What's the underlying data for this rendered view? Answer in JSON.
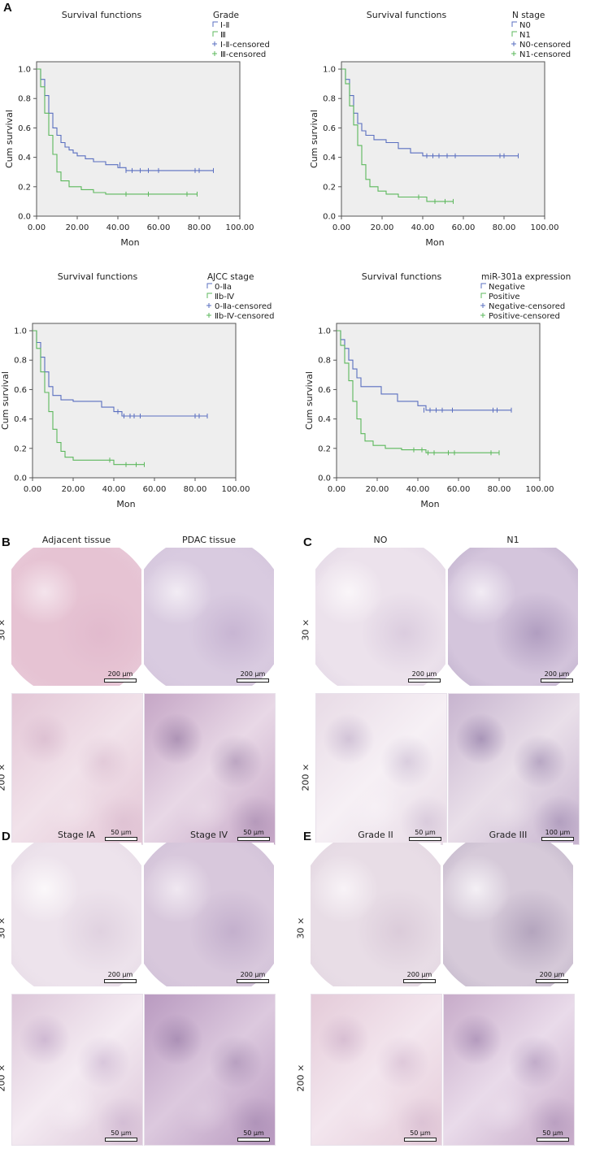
{
  "panels": {
    "A": "A",
    "B": "B",
    "C": "C",
    "D": "D",
    "E": "E"
  },
  "chart_data": [
    {
      "type": "line",
      "title": "Survival functions",
      "xlabel": "Mon",
      "ylabel": "Cum survival",
      "xlim": [
        0,
        100
      ],
      "ylim": [
        0,
        1.05
      ],
      "xticks": [
        "0.00",
        "20.00",
        "40.00",
        "60.00",
        "80.00",
        "100.00"
      ],
      "yticks": [
        "0.0",
        "0.2",
        "0.4",
        "0.6",
        "0.8",
        "1.0"
      ],
      "legend_title": "Grade",
      "legend_placement": "top-right",
      "legend": [
        "Ⅰ-Ⅱ",
        "Ⅲ",
        "Ⅰ-Ⅱ-censored",
        "Ⅲ-censored"
      ],
      "series": [
        {
          "name": "Ⅰ-Ⅱ",
          "color": "#5a6fc0",
          "x": [
            0,
            2,
            2,
            4,
            4,
            6,
            6,
            8,
            8,
            10,
            10,
            12,
            12,
            14,
            14,
            16,
            16,
            18,
            18,
            20,
            20,
            24,
            24,
            28,
            28,
            34,
            34,
            40,
            40,
            44,
            44,
            87
          ],
          "y": [
            1,
            1,
            0.93,
            0.93,
            0.82,
            0.82,
            0.7,
            0.7,
            0.6,
            0.6,
            0.55,
            0.55,
            0.5,
            0.5,
            0.47,
            0.47,
            0.45,
            0.45,
            0.43,
            0.43,
            0.41,
            0.41,
            0.39,
            0.39,
            0.37,
            0.37,
            0.35,
            0.35,
            0.33,
            0.33,
            0.31,
            0.31
          ],
          "censored": [
            [
              41,
              0.35
            ],
            [
              44,
              0.31
            ],
            [
              47,
              0.31
            ],
            [
              51,
              0.31
            ],
            [
              55,
              0.31
            ],
            [
              60,
              0.31
            ],
            [
              78,
              0.31
            ],
            [
              80,
              0.31
            ],
            [
              87,
              0.31
            ]
          ]
        },
        {
          "name": "Ⅲ",
          "color": "#5cb85c",
          "x": [
            0,
            2,
            2,
            4,
            4,
            6,
            6,
            8,
            8,
            10,
            10,
            12,
            12,
            16,
            16,
            22,
            22,
            28,
            28,
            34,
            34,
            79
          ],
          "y": [
            1,
            1,
            0.88,
            0.88,
            0.7,
            0.7,
            0.55,
            0.55,
            0.42,
            0.42,
            0.3,
            0.3,
            0.24,
            0.24,
            0.2,
            0.2,
            0.18,
            0.18,
            0.16,
            0.16,
            0.15,
            0.15
          ],
          "censored": [
            [
              44,
              0.15
            ],
            [
              55,
              0.15
            ],
            [
              74,
              0.15
            ],
            [
              79,
              0.15
            ]
          ]
        }
      ]
    },
    {
      "type": "line",
      "title": "Survival functions",
      "xlabel": "Mon",
      "ylabel": "Cum survival",
      "xlim": [
        0,
        100
      ],
      "ylim": [
        0,
        1.05
      ],
      "xticks": [
        "0.00",
        "20.00",
        "40.00",
        "60.00",
        "80.00",
        "100.00"
      ],
      "yticks": [
        "0.0",
        "0.2",
        "0.4",
        "0.6",
        "0.8",
        "1.0"
      ],
      "legend_title": "N stage",
      "legend_placement": "top-right",
      "legend": [
        "N0",
        "N1",
        "N0-censored",
        "N1-censored"
      ],
      "series": [
        {
          "name": "N0",
          "color": "#5a6fc0",
          "x": [
            0,
            2,
            2,
            4,
            4,
            6,
            6,
            8,
            8,
            10,
            10,
            12,
            12,
            16,
            16,
            22,
            22,
            28,
            28,
            34,
            34,
            40,
            40,
            87
          ],
          "y": [
            1,
            1,
            0.93,
            0.93,
            0.82,
            0.82,
            0.7,
            0.7,
            0.63,
            0.63,
            0.58,
            0.58,
            0.55,
            0.55,
            0.52,
            0.52,
            0.5,
            0.5,
            0.46,
            0.46,
            0.43,
            0.43,
            0.41,
            0.41
          ],
          "censored": [
            [
              42,
              0.41
            ],
            [
              45,
              0.41
            ],
            [
              48,
              0.41
            ],
            [
              52,
              0.41
            ],
            [
              56,
              0.41
            ],
            [
              78,
              0.41
            ],
            [
              80,
              0.41
            ],
            [
              87,
              0.41
            ]
          ]
        },
        {
          "name": "N1",
          "color": "#5cb85c",
          "x": [
            0,
            2,
            2,
            4,
            4,
            6,
            6,
            8,
            8,
            10,
            10,
            12,
            12,
            14,
            14,
            18,
            18,
            22,
            22,
            28,
            28,
            42,
            42,
            55
          ],
          "y": [
            1,
            1,
            0.9,
            0.9,
            0.75,
            0.75,
            0.62,
            0.62,
            0.48,
            0.48,
            0.35,
            0.35,
            0.25,
            0.25,
            0.2,
            0.2,
            0.17,
            0.17,
            0.15,
            0.15,
            0.13,
            0.13,
            0.1,
            0.1
          ],
          "censored": [
            [
              38,
              0.13
            ],
            [
              46,
              0.1
            ],
            [
              51,
              0.1
            ],
            [
              55,
              0.1
            ]
          ]
        }
      ]
    },
    {
      "type": "line",
      "title": "Survival functions",
      "xlabel": "Mon",
      "ylabel": "Cum survival",
      "xlim": [
        0,
        100
      ],
      "ylim": [
        0,
        1.05
      ],
      "xticks": [
        "0.00",
        "20.00",
        "40.00",
        "60.00",
        "80.00",
        "100.00"
      ],
      "yticks": [
        "0.0",
        "0.2",
        "0.4",
        "0.6",
        "0.8",
        "1.0"
      ],
      "legend_title": "AJCC stage",
      "legend_placement": "top-right",
      "legend": [
        "0-Ⅱa",
        "Ⅱb-Ⅳ",
        "0-Ⅱa-censored",
        "Ⅱb-Ⅳ-censored"
      ],
      "series": [
        {
          "name": "0-Ⅱa",
          "color": "#5a6fc0",
          "x": [
            0,
            2,
            2,
            4,
            4,
            6,
            6,
            8,
            8,
            10,
            10,
            14,
            14,
            20,
            20,
            34,
            34,
            40,
            40,
            44,
            44,
            86
          ],
          "y": [
            1,
            1,
            0.92,
            0.92,
            0.82,
            0.82,
            0.72,
            0.72,
            0.62,
            0.62,
            0.56,
            0.56,
            0.53,
            0.53,
            0.52,
            0.52,
            0.48,
            0.48,
            0.45,
            0.45,
            0.42,
            0.42
          ],
          "censored": [
            [
              42,
              0.45
            ],
            [
              45,
              0.42
            ],
            [
              48,
              0.42
            ],
            [
              50,
              0.42
            ],
            [
              53,
              0.42
            ],
            [
              80,
              0.42
            ],
            [
              82,
              0.42
            ],
            [
              86,
              0.42
            ]
          ]
        },
        {
          "name": "Ⅱb-Ⅳ",
          "color": "#5cb85c",
          "x": [
            0,
            2,
            2,
            4,
            4,
            6,
            6,
            8,
            8,
            10,
            10,
            12,
            12,
            14,
            14,
            16,
            16,
            20,
            20,
            40,
            40,
            55
          ],
          "y": [
            1,
            1,
            0.88,
            0.88,
            0.72,
            0.72,
            0.58,
            0.58,
            0.45,
            0.45,
            0.33,
            0.33,
            0.24,
            0.24,
            0.18,
            0.18,
            0.14,
            0.14,
            0.12,
            0.12,
            0.09,
            0.09
          ],
          "censored": [
            [
              38,
              0.12
            ],
            [
              46,
              0.09
            ],
            [
              51,
              0.09
            ],
            [
              55,
              0.09
            ]
          ]
        }
      ]
    },
    {
      "type": "line",
      "title": "Survival functions",
      "xlabel": "Mon",
      "ylabel": "Cum survival",
      "xlim": [
        0,
        100
      ],
      "ylim": [
        0,
        1.05
      ],
      "xticks": [
        "0.00",
        "20.00",
        "40.00",
        "60.00",
        "80.00",
        "100.00"
      ],
      "yticks": [
        "0.0",
        "0.2",
        "0.4",
        "0.6",
        "0.8",
        "1.0"
      ],
      "legend_title": "miR-301a expression",
      "legend_placement": "top-right",
      "legend": [
        "Negative",
        "Positive",
        "Negative-censored",
        "Positive-censored"
      ],
      "series": [
        {
          "name": "Negative",
          "color": "#5a6fc0",
          "x": [
            0,
            2,
            2,
            4,
            4,
            6,
            6,
            8,
            8,
            10,
            10,
            12,
            12,
            22,
            22,
            30,
            30,
            40,
            40,
            44,
            44,
            86
          ],
          "y": [
            1,
            1,
            0.94,
            0.94,
            0.88,
            0.88,
            0.8,
            0.8,
            0.74,
            0.74,
            0.68,
            0.68,
            0.62,
            0.62,
            0.57,
            0.57,
            0.52,
            0.52,
            0.49,
            0.49,
            0.46,
            0.46
          ],
          "censored": [
            [
              43,
              0.46
            ],
            [
              46,
              0.46
            ],
            [
              49,
              0.46
            ],
            [
              52,
              0.46
            ],
            [
              57,
              0.46
            ],
            [
              77,
              0.46
            ],
            [
              79,
              0.46
            ],
            [
              86,
              0.46
            ]
          ]
        },
        {
          "name": "Positive",
          "color": "#5cb85c",
          "x": [
            0,
            2,
            2,
            4,
            4,
            6,
            6,
            8,
            8,
            10,
            10,
            12,
            12,
            14,
            14,
            18,
            18,
            24,
            24,
            32,
            32,
            44,
            44,
            80
          ],
          "y": [
            1,
            1,
            0.9,
            0.9,
            0.78,
            0.78,
            0.66,
            0.66,
            0.52,
            0.52,
            0.4,
            0.4,
            0.3,
            0.3,
            0.25,
            0.25,
            0.22,
            0.22,
            0.2,
            0.2,
            0.19,
            0.19,
            0.17,
            0.17
          ],
          "censored": [
            [
              38,
              0.19
            ],
            [
              42,
              0.19
            ],
            [
              45,
              0.17
            ],
            [
              48,
              0.17
            ],
            [
              55,
              0.17
            ],
            [
              58,
              0.17
            ],
            [
              76,
              0.17
            ],
            [
              80,
              0.17
            ]
          ]
        }
      ]
    }
  ],
  "histology": {
    "B": {
      "col_heads": [
        "Adjacent tissue",
        "PDAC tissue"
      ],
      "row_heads": [
        "30 ×",
        "200 ×"
      ],
      "scales": [
        "200 μm",
        "200 μm",
        "50 μm",
        "50 μm"
      ]
    },
    "C": {
      "col_heads": [
        "NO",
        "N1"
      ],
      "row_heads": [
        "30 ×",
        "200 ×"
      ],
      "scales": [
        "200 μm",
        "200 μm",
        "50 μm",
        "100 μm"
      ]
    },
    "D": {
      "col_heads": [
        "Stage IA",
        "Stage IV"
      ],
      "row_heads": [
        "30 ×",
        "200 ×"
      ],
      "scales": [
        "200 μm",
        "200 μm",
        "50 μm",
        "50 μm"
      ]
    },
    "E": {
      "col_heads": [
        "Grade II",
        "Grade III"
      ],
      "row_heads": [
        "30 ×",
        "200 ×"
      ],
      "scales": [
        "200 μm",
        "200 μm",
        "50 μm",
        "50 μm"
      ]
    }
  },
  "colors": {
    "plot_bg": "#eeeeee",
    "blue_series": "#5a6fc0",
    "green_series": "#5cb85c",
    "tissue_pink": "#e7c9d8",
    "tissue_purple": "#9a78ad"
  }
}
